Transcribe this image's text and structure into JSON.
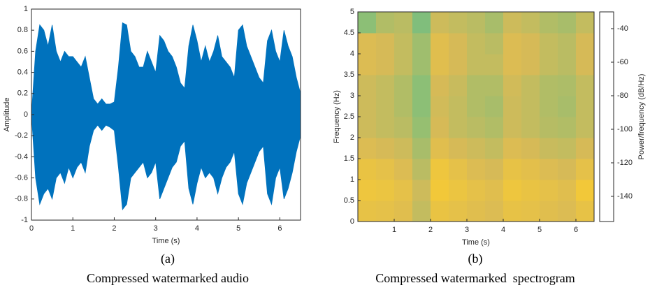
{
  "chart_data": [
    {
      "type": "area",
      "xlabel": "Time (s)",
      "ylabel": "Amplitude",
      "label": "(a)",
      "caption": "Compressed watermarked audio",
      "color": "#0072bd",
      "x": [
        0,
        0.1,
        0.2,
        0.3,
        0.4,
        0.5,
        0.6,
        0.7,
        0.8,
        0.9,
        1.0,
        1.1,
        1.2,
        1.3,
        1.4,
        1.5,
        1.6,
        1.7,
        1.8,
        1.9,
        2.0,
        2.1,
        2.2,
        2.3,
        2.4,
        2.5,
        2.6,
        2.7,
        2.8,
        2.9,
        3.0,
        3.1,
        3.2,
        3.3,
        3.4,
        3.5,
        3.6,
        3.7,
        3.8,
        3.9,
        4.0,
        4.1,
        4.2,
        4.3,
        4.4,
        4.5,
        4.6,
        4.7,
        4.8,
        4.9,
        5.0,
        5.1,
        5.2,
        5.3,
        5.4,
        5.5,
        5.6,
        5.7,
        5.8,
        5.9,
        6.0,
        6.1,
        6.2,
        6.3,
        6.4,
        6.5
      ],
      "series": [
        {
          "values": [
            0,
            0.6,
            0.85,
            0.8,
            0.65,
            0.85,
            0.6,
            0.5,
            0.6,
            0.55,
            0.55,
            0.5,
            0.45,
            0.55,
            0.35,
            0.15,
            0.1,
            0.15,
            0.1,
            0.1,
            0.12,
            0.45,
            0.87,
            0.85,
            0.6,
            0.55,
            0.45,
            0.45,
            0.6,
            0.5,
            0.4,
            0.75,
            0.7,
            0.6,
            0.55,
            0.45,
            0.3,
            0.25,
            0.65,
            0.85,
            0.7,
            0.5,
            0.65,
            0.5,
            0.6,
            0.75,
            0.55,
            0.5,
            0.45,
            0.35,
            0.8,
            0.85,
            0.65,
            0.55,
            0.45,
            0.35,
            0.3,
            0.7,
            0.8,
            0.6,
            0.5,
            0.8,
            0.65,
            0.55,
            0.35,
            0.2
          ]
        },
        {
          "values": [
            0,
            -0.6,
            -0.85,
            -0.75,
            -0.7,
            -0.8,
            -0.6,
            -0.55,
            -0.65,
            -0.5,
            -0.6,
            -0.5,
            -0.45,
            -0.55,
            -0.3,
            -0.15,
            -0.1,
            -0.15,
            -0.1,
            -0.12,
            -0.15,
            -0.5,
            -0.9,
            -0.85,
            -0.6,
            -0.55,
            -0.5,
            -0.45,
            -0.6,
            -0.55,
            -0.45,
            -0.8,
            -0.7,
            -0.6,
            -0.5,
            -0.45,
            -0.3,
            -0.25,
            -0.7,
            -0.85,
            -0.65,
            -0.5,
            -0.6,
            -0.55,
            -0.6,
            -0.75,
            -0.6,
            -0.5,
            -0.45,
            -0.35,
            -0.75,
            -0.85,
            -0.65,
            -0.55,
            -0.45,
            -0.35,
            -0.3,
            -0.75,
            -0.85,
            -0.6,
            -0.5,
            -0.8,
            -0.7,
            -0.55,
            -0.35,
            -0.2
          ]
        }
      ],
      "xlim": [
        0,
        6.5
      ],
      "xticks": [
        0,
        1,
        2,
        3,
        4,
        5,
        6
      ],
      "ylim": [
        -1,
        1
      ],
      "yticks": [
        -1,
        -0.8,
        -0.6,
        -0.4,
        -0.2,
        0,
        0.2,
        0.4,
        0.6,
        0.8,
        1
      ]
    },
    {
      "type": "heatmap",
      "xlabel": "Time (s)",
      "ylabel": "Frequency (Hz)",
      "colorbar_label": "Power/frequency (dB/Hz)",
      "label": "(b)",
      "caption": "Compressed watermarked  spectrogram",
      "x": [
        0.25,
        0.75,
        1.25,
        1.75,
        2.25,
        2.75,
        3.25,
        3.75,
        4.25,
        4.75,
        5.25,
        5.75,
        6.25
      ],
      "y": [
        0.25,
        0.75,
        1.25,
        1.75,
        2.25,
        2.75,
        3.25,
        3.75,
        4.25,
        4.75
      ],
      "values": [
        [
          -55,
          -56,
          -58,
          -66,
          -54,
          -56,
          -58,
          -60,
          -55,
          -56,
          -58,
          -60,
          -55
        ],
        [
          -52,
          -53,
          -56,
          -64,
          -50,
          -53,
          -56,
          -58,
          -52,
          -54,
          -56,
          -58,
          -50
        ],
        [
          -54,
          -56,
          -60,
          -68,
          -52,
          -56,
          -60,
          -62,
          -55,
          -57,
          -60,
          -62,
          -56
        ],
        [
          -60,
          -62,
          -64,
          -72,
          -58,
          -62,
          -64,
          -66,
          -60,
          -62,
          -65,
          -66,
          -62
        ],
        [
          -64,
          -66,
          -68,
          -76,
          -62,
          -66,
          -68,
          -70,
          -64,
          -66,
          -69,
          -70,
          -66
        ],
        [
          -64,
          -66,
          -70,
          -78,
          -63,
          -66,
          -70,
          -72,
          -64,
          -66,
          -70,
          -72,
          -66
        ],
        [
          -64,
          -66,
          -70,
          -78,
          -62,
          -65,
          -70,
          -70,
          -63,
          -66,
          -70,
          -71,
          -66
        ],
        [
          -60,
          -62,
          -66,
          -74,
          -58,
          -62,
          -66,
          -66,
          -60,
          -62,
          -66,
          -68,
          -62
        ],
        [
          -60,
          -62,
          -66,
          -74,
          -58,
          -62,
          -66,
          -68,
          -60,
          -62,
          -66,
          -68,
          -62
        ],
        [
          -78,
          -70,
          -68,
          -80,
          -64,
          -66,
          -68,
          -72,
          -64,
          -66,
          -70,
          -72,
          -66
        ]
      ],
      "colormap": [
        "#352a87",
        "#0363e1",
        "#1485d4",
        "#06a7c6",
        "#38b99e",
        "#92bf73",
        "#d9ba56",
        "#fcce2e",
        "#f9fb0e"
      ],
      "clim": [
        -155,
        -30
      ],
      "cticks": [
        -40,
        -60,
        -80,
        -100,
        -120,
        -140
      ],
      "xlim": [
        0,
        6.5
      ],
      "xticks": [
        1,
        2,
        3,
        4,
        5,
        6
      ],
      "ylim": [
        0,
        5
      ],
      "yticks": [
        0,
        0.5,
        1,
        1.5,
        2,
        2.5,
        3,
        3.5,
        4,
        4.5,
        5
      ]
    }
  ]
}
